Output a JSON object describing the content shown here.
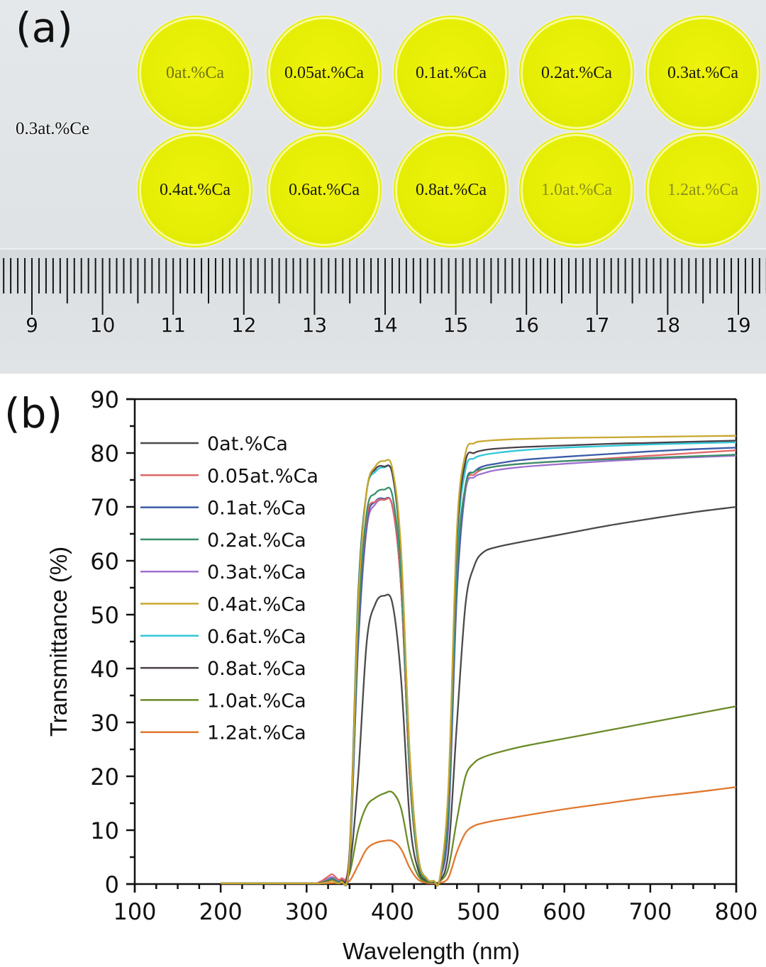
{
  "panel_a": {
    "label": "(a)",
    "sample_note": "0.3at.%Ce",
    "disc_color": "#e6ee05",
    "discs": [
      {
        "label": "0at.%Ca",
        "tone": "mid"
      },
      {
        "label": "0.05at.%Ca",
        "tone": "dark"
      },
      {
        "label": "0.1at.%Ca",
        "tone": "dark"
      },
      {
        "label": "0.2at.%Ca",
        "tone": "dark"
      },
      {
        "label": "0.3at.%Ca",
        "tone": "dark"
      },
      {
        "label": "0.4at.%Ca",
        "tone": "dark"
      },
      {
        "label": "0.6at.%Ca",
        "tone": "dark"
      },
      {
        "label": "0.8at.%Ca",
        "tone": "dark"
      },
      {
        "label": "1.0at.%Ca",
        "tone": "faint"
      },
      {
        "label": "1.2at.%Ca",
        "tone": "faint"
      }
    ],
    "ruler": {
      "unit": "cm",
      "labels": [
        "9",
        "10",
        "11",
        "12",
        "13",
        "14",
        "15",
        "16",
        "17",
        "18",
        "19"
      ]
    }
  },
  "chart_data": {
    "type": "line",
    "panel_label": "(b)",
    "title": "",
    "xlabel": "Wavelength (nm)",
    "ylabel": "Transmittance (%)",
    "xlim": [
      100,
      800
    ],
    "ylim": [
      0,
      90
    ],
    "xticks": [
      100,
      200,
      300,
      400,
      500,
      600,
      700,
      800
    ],
    "yticks": [
      0,
      10,
      20,
      30,
      40,
      50,
      60,
      70,
      80,
      90
    ],
    "x_minor_step": 25,
    "y_minor_step": 5,
    "grid": false,
    "legend": "top-left",
    "x": [
      200,
      300,
      315,
      325,
      330,
      340,
      350,
      360,
      370,
      380,
      390,
      400,
      410,
      420,
      430,
      440,
      448,
      455,
      465,
      475,
      485,
      495,
      505,
      520,
      550,
      600,
      650,
      700,
      750,
      800
    ],
    "series": [
      {
        "name": "0at.%Ca",
        "color": "#4a4a4a",
        "values": [
          0,
          0,
          0.3,
          0.8,
          1.0,
          0.6,
          3,
          20,
          45,
          52,
          53.5,
          52,
          38,
          12,
          2.5,
          0.6,
          0.4,
          0.6,
          6,
          30,
          52,
          59,
          61.5,
          62.5,
          63.5,
          65,
          66.5,
          67.8,
          69,
          70
        ]
      },
      {
        "name": "0.05at.%Ca",
        "color": "#e06666",
        "values": [
          0,
          0,
          0.4,
          1.4,
          1.8,
          1.0,
          6,
          48,
          68,
          71,
          71.3,
          70,
          55,
          20,
          4,
          0.8,
          0.5,
          0.9,
          14,
          58,
          74,
          76,
          77,
          77.5,
          78,
          78.5,
          79,
          79.5,
          80,
          80.5
        ]
      },
      {
        "name": "0.1at.%Ca",
        "color": "#3b5ba8",
        "values": [
          0,
          0,
          0.2,
          0.6,
          0.9,
          0.6,
          4,
          45,
          67,
          71,
          71.5,
          70,
          55,
          20,
          4,
          0.8,
          0.5,
          0.9,
          12,
          55,
          74,
          76.5,
          77.5,
          78,
          78.7,
          79.3,
          79.8,
          80.3,
          80.7,
          81
        ]
      },
      {
        "name": "0.2at.%Ca",
        "color": "#3a8f6a",
        "values": [
          0,
          0,
          0.2,
          0.7,
          1.0,
          0.6,
          5,
          48,
          69,
          72.5,
          73.2,
          72,
          57,
          21,
          4,
          0.8,
          0.5,
          0.9,
          14,
          58,
          74,
          76.5,
          77,
          77.5,
          78,
          78.5,
          78.8,
          79.1,
          79.4,
          79.7
        ]
      },
      {
        "name": "0.3at.%Ca",
        "color": "#a070d0",
        "values": [
          0,
          0,
          0.3,
          1.0,
          1.3,
          0.8,
          5,
          44,
          66,
          70.5,
          71.3,
          70,
          55,
          20,
          4,
          0.8,
          0.5,
          0.9,
          11,
          54,
          73,
          75.5,
          76.2,
          76.8,
          77.4,
          78,
          78.5,
          78.9,
          79.2,
          79.5
        ]
      },
      {
        "name": "0.4at.%Ca",
        "color": "#c8a830",
        "values": [
          0,
          0,
          0.1,
          0.4,
          0.6,
          0.4,
          5,
          52,
          73,
          77.5,
          78.5,
          77,
          62,
          24,
          5,
          1.0,
          0.6,
          1.1,
          18,
          66,
          80,
          81.8,
          82.2,
          82.4,
          82.6,
          82.8,
          82.9,
          83.0,
          83.1,
          83.2
        ]
      },
      {
        "name": "0.6at.%Ca",
        "color": "#30c8d8",
        "values": [
          0,
          0,
          0.1,
          0.5,
          0.7,
          0.5,
          6,
          54,
          73,
          76.5,
          77.3,
          76,
          60,
          23,
          5,
          1.0,
          0.6,
          1.0,
          16,
          62,
          77,
          79,
          79.6,
          80,
          80.5,
          81,
          81.3,
          81.6,
          81.8,
          82
        ]
      },
      {
        "name": "0.8at.%Ca",
        "color": "#4a4048",
        "values": [
          0,
          0,
          0.1,
          0.5,
          0.7,
          0.5,
          6,
          53,
          73,
          77,
          77.5,
          76,
          61,
          24,
          5,
          1.0,
          0.6,
          1.0,
          17,
          64,
          78.5,
          80,
          80.5,
          80.8,
          81.1,
          81.4,
          81.7,
          81.9,
          82.1,
          82.3
        ]
      },
      {
        "name": "1.0at.%Ca",
        "color": "#6b8a28",
        "values": [
          0,
          0,
          0.1,
          0.4,
          0.6,
          0.4,
          2,
          10,
          14.5,
          16,
          16.8,
          17,
          14,
          6,
          1.5,
          0.4,
          0.3,
          0.5,
          3,
          12,
          20,
          22.5,
          23.5,
          24.3,
          25.5,
          27,
          28.5,
          30,
          31.5,
          33
        ]
      },
      {
        "name": "1.2at.%Ca",
        "color": "#e07830",
        "values": [
          0,
          0,
          0,
          0.1,
          0.2,
          0.2,
          0.6,
          3.5,
          6.5,
          7.6,
          8.0,
          8.0,
          6.5,
          3,
          0.8,
          0.2,
          0.1,
          0.2,
          1.2,
          6,
          9.5,
          10.8,
          11.3,
          11.8,
          12.6,
          13.9,
          15,
          16.1,
          17,
          18
        ]
      }
    ]
  }
}
